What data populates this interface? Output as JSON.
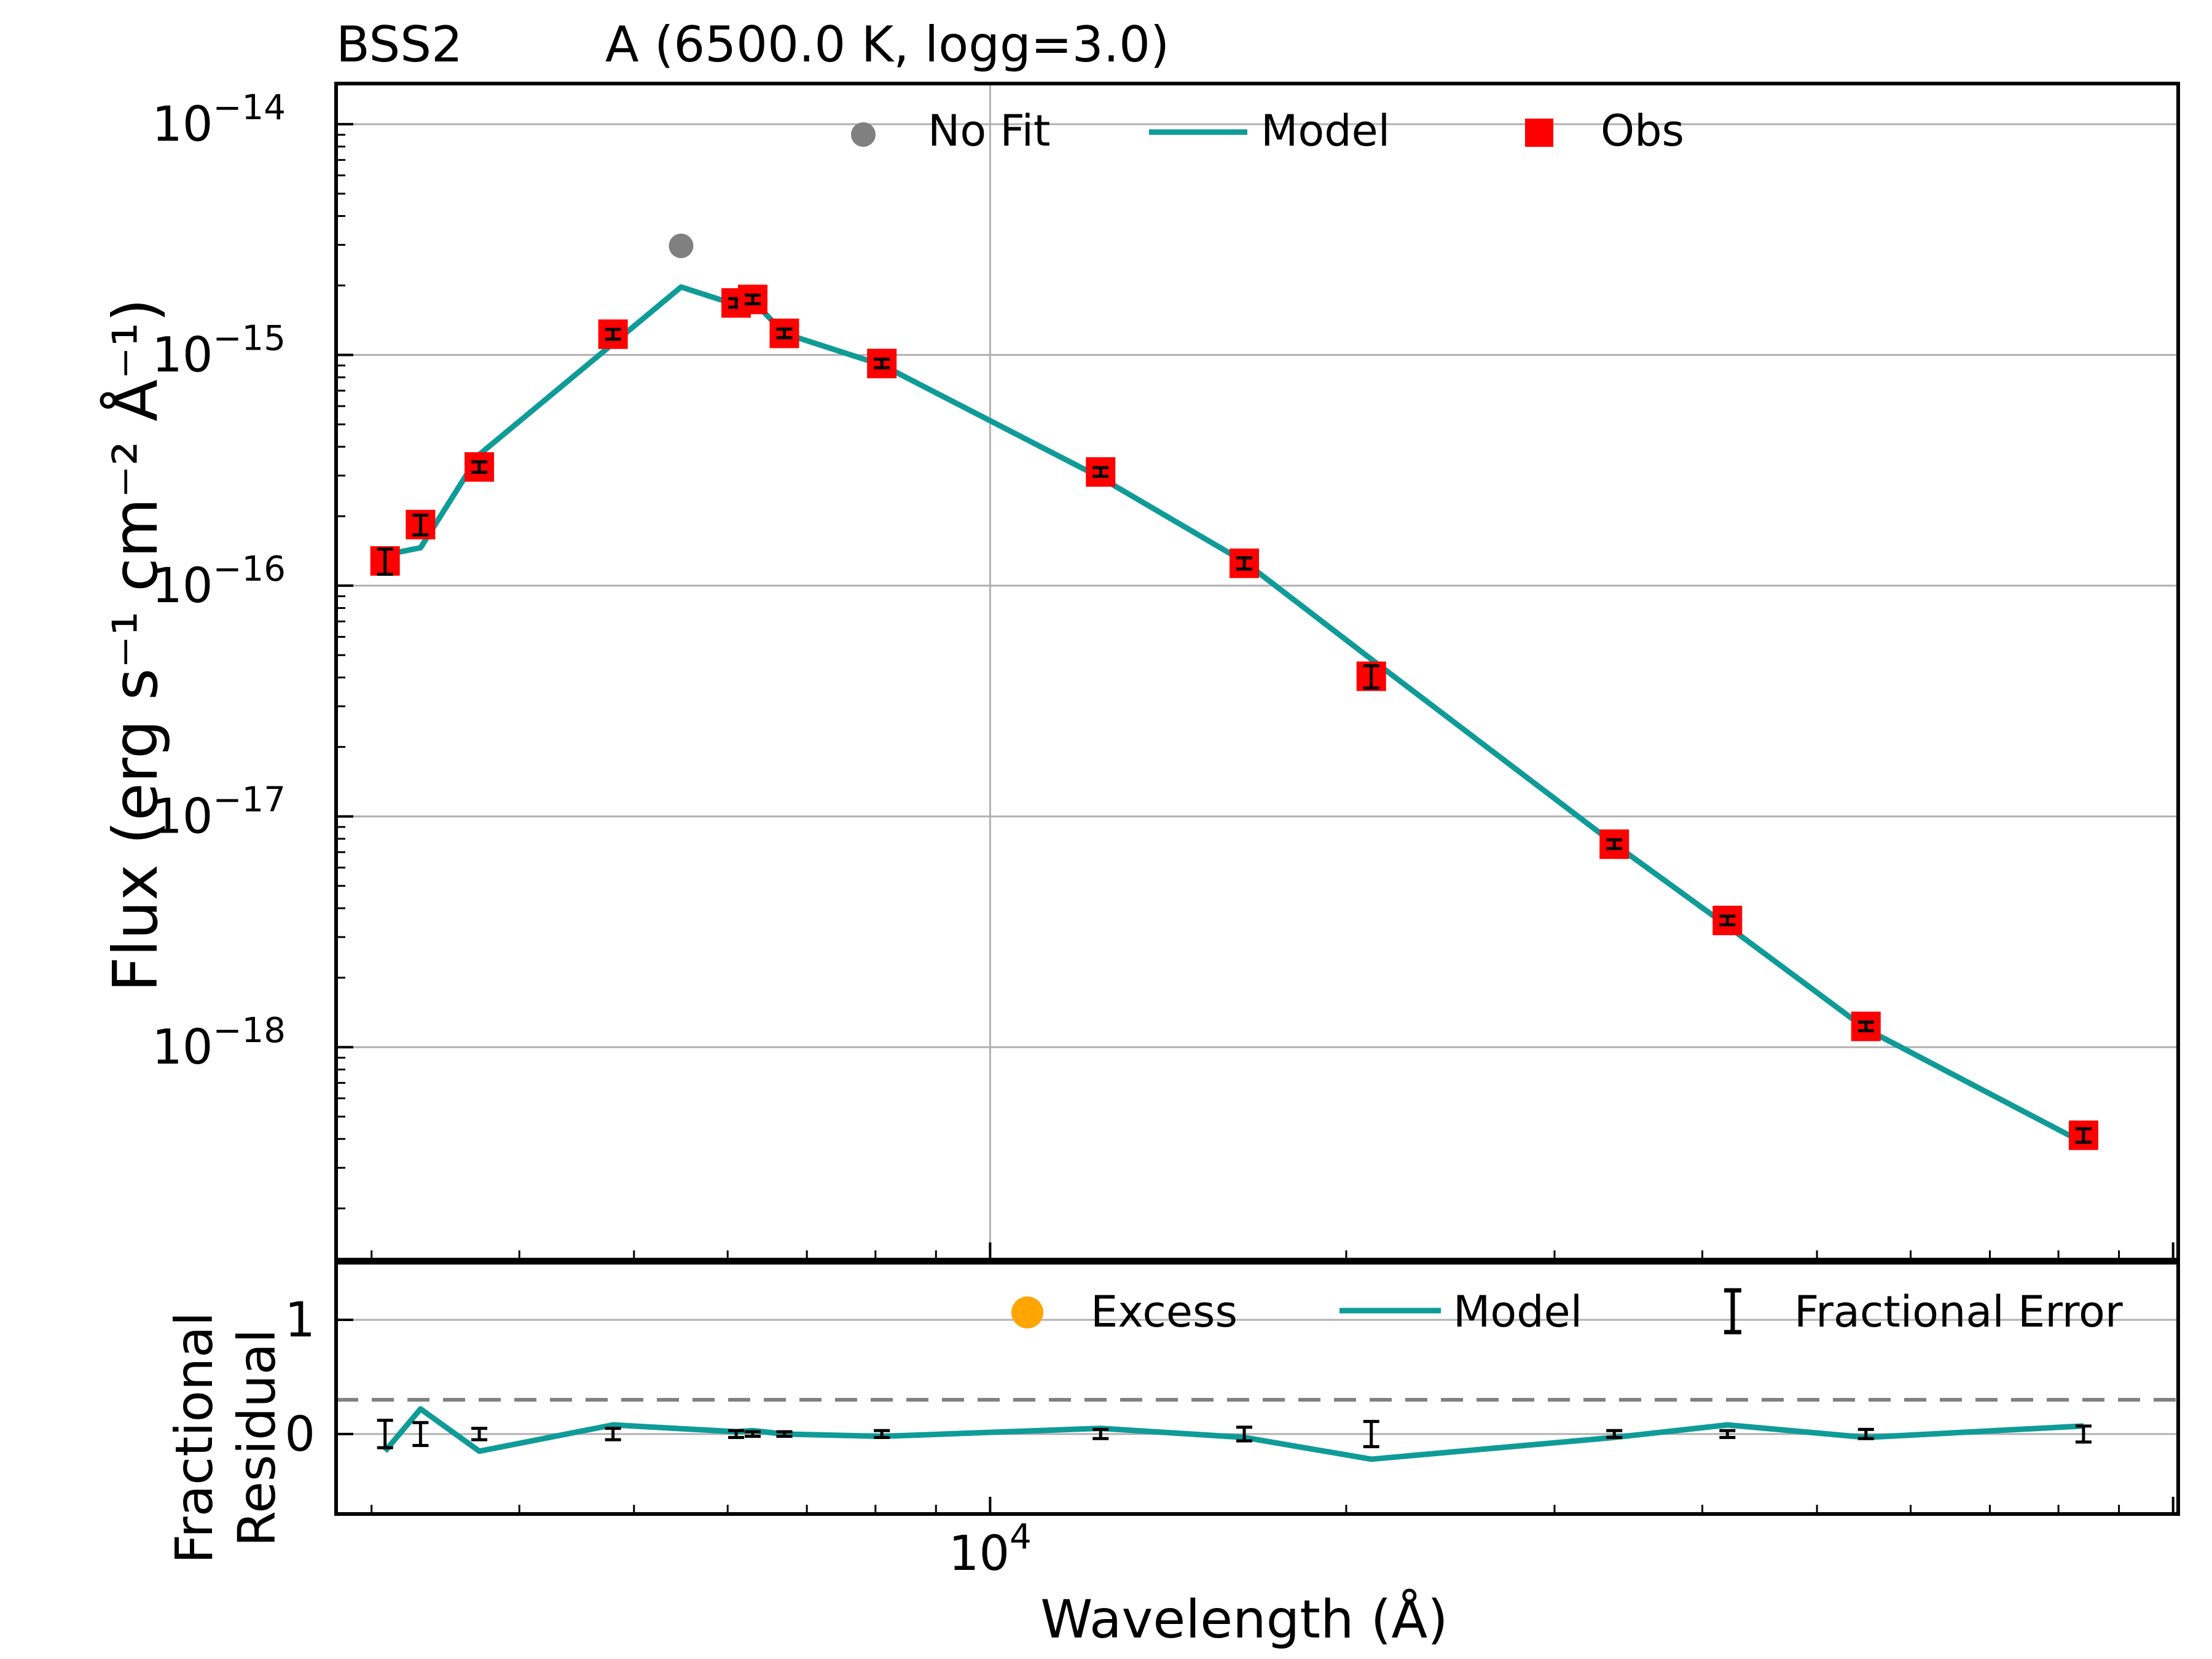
{
  "chart_data": [
    {
      "type": "scatter",
      "panel": "sed",
      "title_left": "BSS2",
      "title_right": "A (6500.0 K, logg=3.0)",
      "ylabel": "Flux (erg s⁻¹ cm⁻² Å⁻¹)",
      "xscale": "log",
      "yscale": "log",
      "xlim": [
        2800,
        101000
      ],
      "ylim": [
        1.2e-19,
        1.5e-14
      ],
      "grid": true,
      "legend_position": "top-center",
      "ytick_labels": [
        {
          "value": 1e-18,
          "base": "10",
          "exp": "−18"
        },
        {
          "value": 1e-17,
          "base": "10",
          "exp": "−17"
        },
        {
          "value": 1e-16,
          "base": "10",
          "exp": "−16"
        },
        {
          "value": 1e-15,
          "base": "10",
          "exp": "−15"
        },
        {
          "value": 1e-14,
          "base": "10",
          "exp": "−14"
        }
      ],
      "legend": [
        {
          "key": "nofit",
          "label": "No Fit",
          "color": "#808080"
        },
        {
          "key": "model",
          "label": "Model",
          "color": "#0f9b98"
        },
        {
          "key": "obs",
          "label": "Obs",
          "color": "#ff0000"
        }
      ],
      "series": [
        {
          "name": "Obs",
          "color": "#ff0000",
          "x": [
            3080,
            3300,
            3700,
            4800,
            6100,
            6300,
            6700,
            8100,
            12400,
            16400,
            21000,
            33700,
            42000,
            55000,
            84000
          ],
          "y": [
            1.28e-16,
            1.84e-16,
            3.27e-16,
            1.23e-15,
            1.68e-15,
            1.74e-15,
            1.24e-15,
            9.18e-16,
            3.11e-16,
            1.25e-16,
            4.05e-17,
            7.58e-18,
            3.54e-18,
            1.23e-18,
            4.15e-19
          ],
          "yerr": [
            1.6e-17,
            1.8e-17,
            1.7e-17,
            6e-17,
            5e-17,
            4e-17,
            2e-17,
            3e-17,
            1.3e-17,
            7e-18,
            4.5e-18,
            2e-19,
            1e-19,
            5e-20,
            2.8e-20
          ]
        },
        {
          "name": "No Fit",
          "color": "#808080",
          "x": [
            5480
          ],
          "y": [
            2.97e-15
          ]
        },
        {
          "name": "Model",
          "color": "#0f9b98",
          "x": [
            3080,
            3300,
            3700,
            4800,
            5480,
            6100,
            6300,
            6700,
            8100,
            12400,
            16400,
            21000,
            33700,
            42000,
            55000,
            84000
          ],
          "y": [
            1.36e-16,
            1.46e-16,
            3.7e-16,
            1.12e-15,
            1.97e-15,
            1.65e-15,
            1.72e-15,
            1.24e-15,
            9.05e-16,
            2.94e-16,
            1.27e-16,
            4.8e-17,
            7.6e-18,
            3.35e-18,
            1.2e-18,
            3.85e-19
          ]
        }
      ]
    },
    {
      "type": "scatter",
      "panel": "residual",
      "ylabel_line1": "Fractional",
      "ylabel_line2": "Residual",
      "xlabel": "Wavelength (Å)",
      "xscale": "log",
      "xlim": [
        2800,
        101000
      ],
      "ylim": [
        -0.7,
        1.5
      ],
      "threshold": 0.3,
      "legend_position": "top-right",
      "ytick_labels": [
        {
          "value": 0,
          "label": "0"
        },
        {
          "value": 1,
          "label": "1"
        }
      ],
      "xtick_labels": [
        {
          "value": 10000,
          "base": "10",
          "exp": "4"
        }
      ],
      "legend": [
        {
          "key": "excess",
          "label": "Excess",
          "color": "#ffa500"
        },
        {
          "key": "model",
          "label": "Model",
          "color": "#0f9b98"
        },
        {
          "key": "err",
          "label": "Fractional Error",
          "color": "#000000"
        }
      ],
      "series": [
        {
          "name": "Model",
          "color": "#0f9b98",
          "x": [
            3080,
            3300,
            3700,
            4800,
            6100,
            6300,
            6700,
            8100,
            12400,
            16400,
            21000,
            33700,
            42000,
            55000,
            84000
          ],
          "y": [
            -0.15,
            0.22,
            -0.15,
            0.08,
            0.02,
            0.03,
            0.0,
            -0.02,
            0.05,
            -0.03,
            -0.22,
            -0.03,
            0.08,
            -0.03,
            0.07
          ]
        },
        {
          "name": "Fractional Error",
          "color": "#000000",
          "x": [
            3080,
            3300,
            3700,
            4800,
            6100,
            6300,
            6700,
            8100,
            12400,
            16400,
            21000,
            33700,
            42000,
            55000,
            84000
          ],
          "y": [
            0,
            0,
            0,
            0,
            0,
            0,
            0,
            0,
            0,
            0,
            0,
            0,
            0,
            0,
            0
          ],
          "yerr": [
            0.12,
            0.1,
            0.05,
            0.05,
            0.03,
            0.02,
            0.02,
            0.03,
            0.04,
            0.06,
            0.11,
            0.03,
            0.03,
            0.04,
            0.07
          ]
        }
      ]
    }
  ]
}
